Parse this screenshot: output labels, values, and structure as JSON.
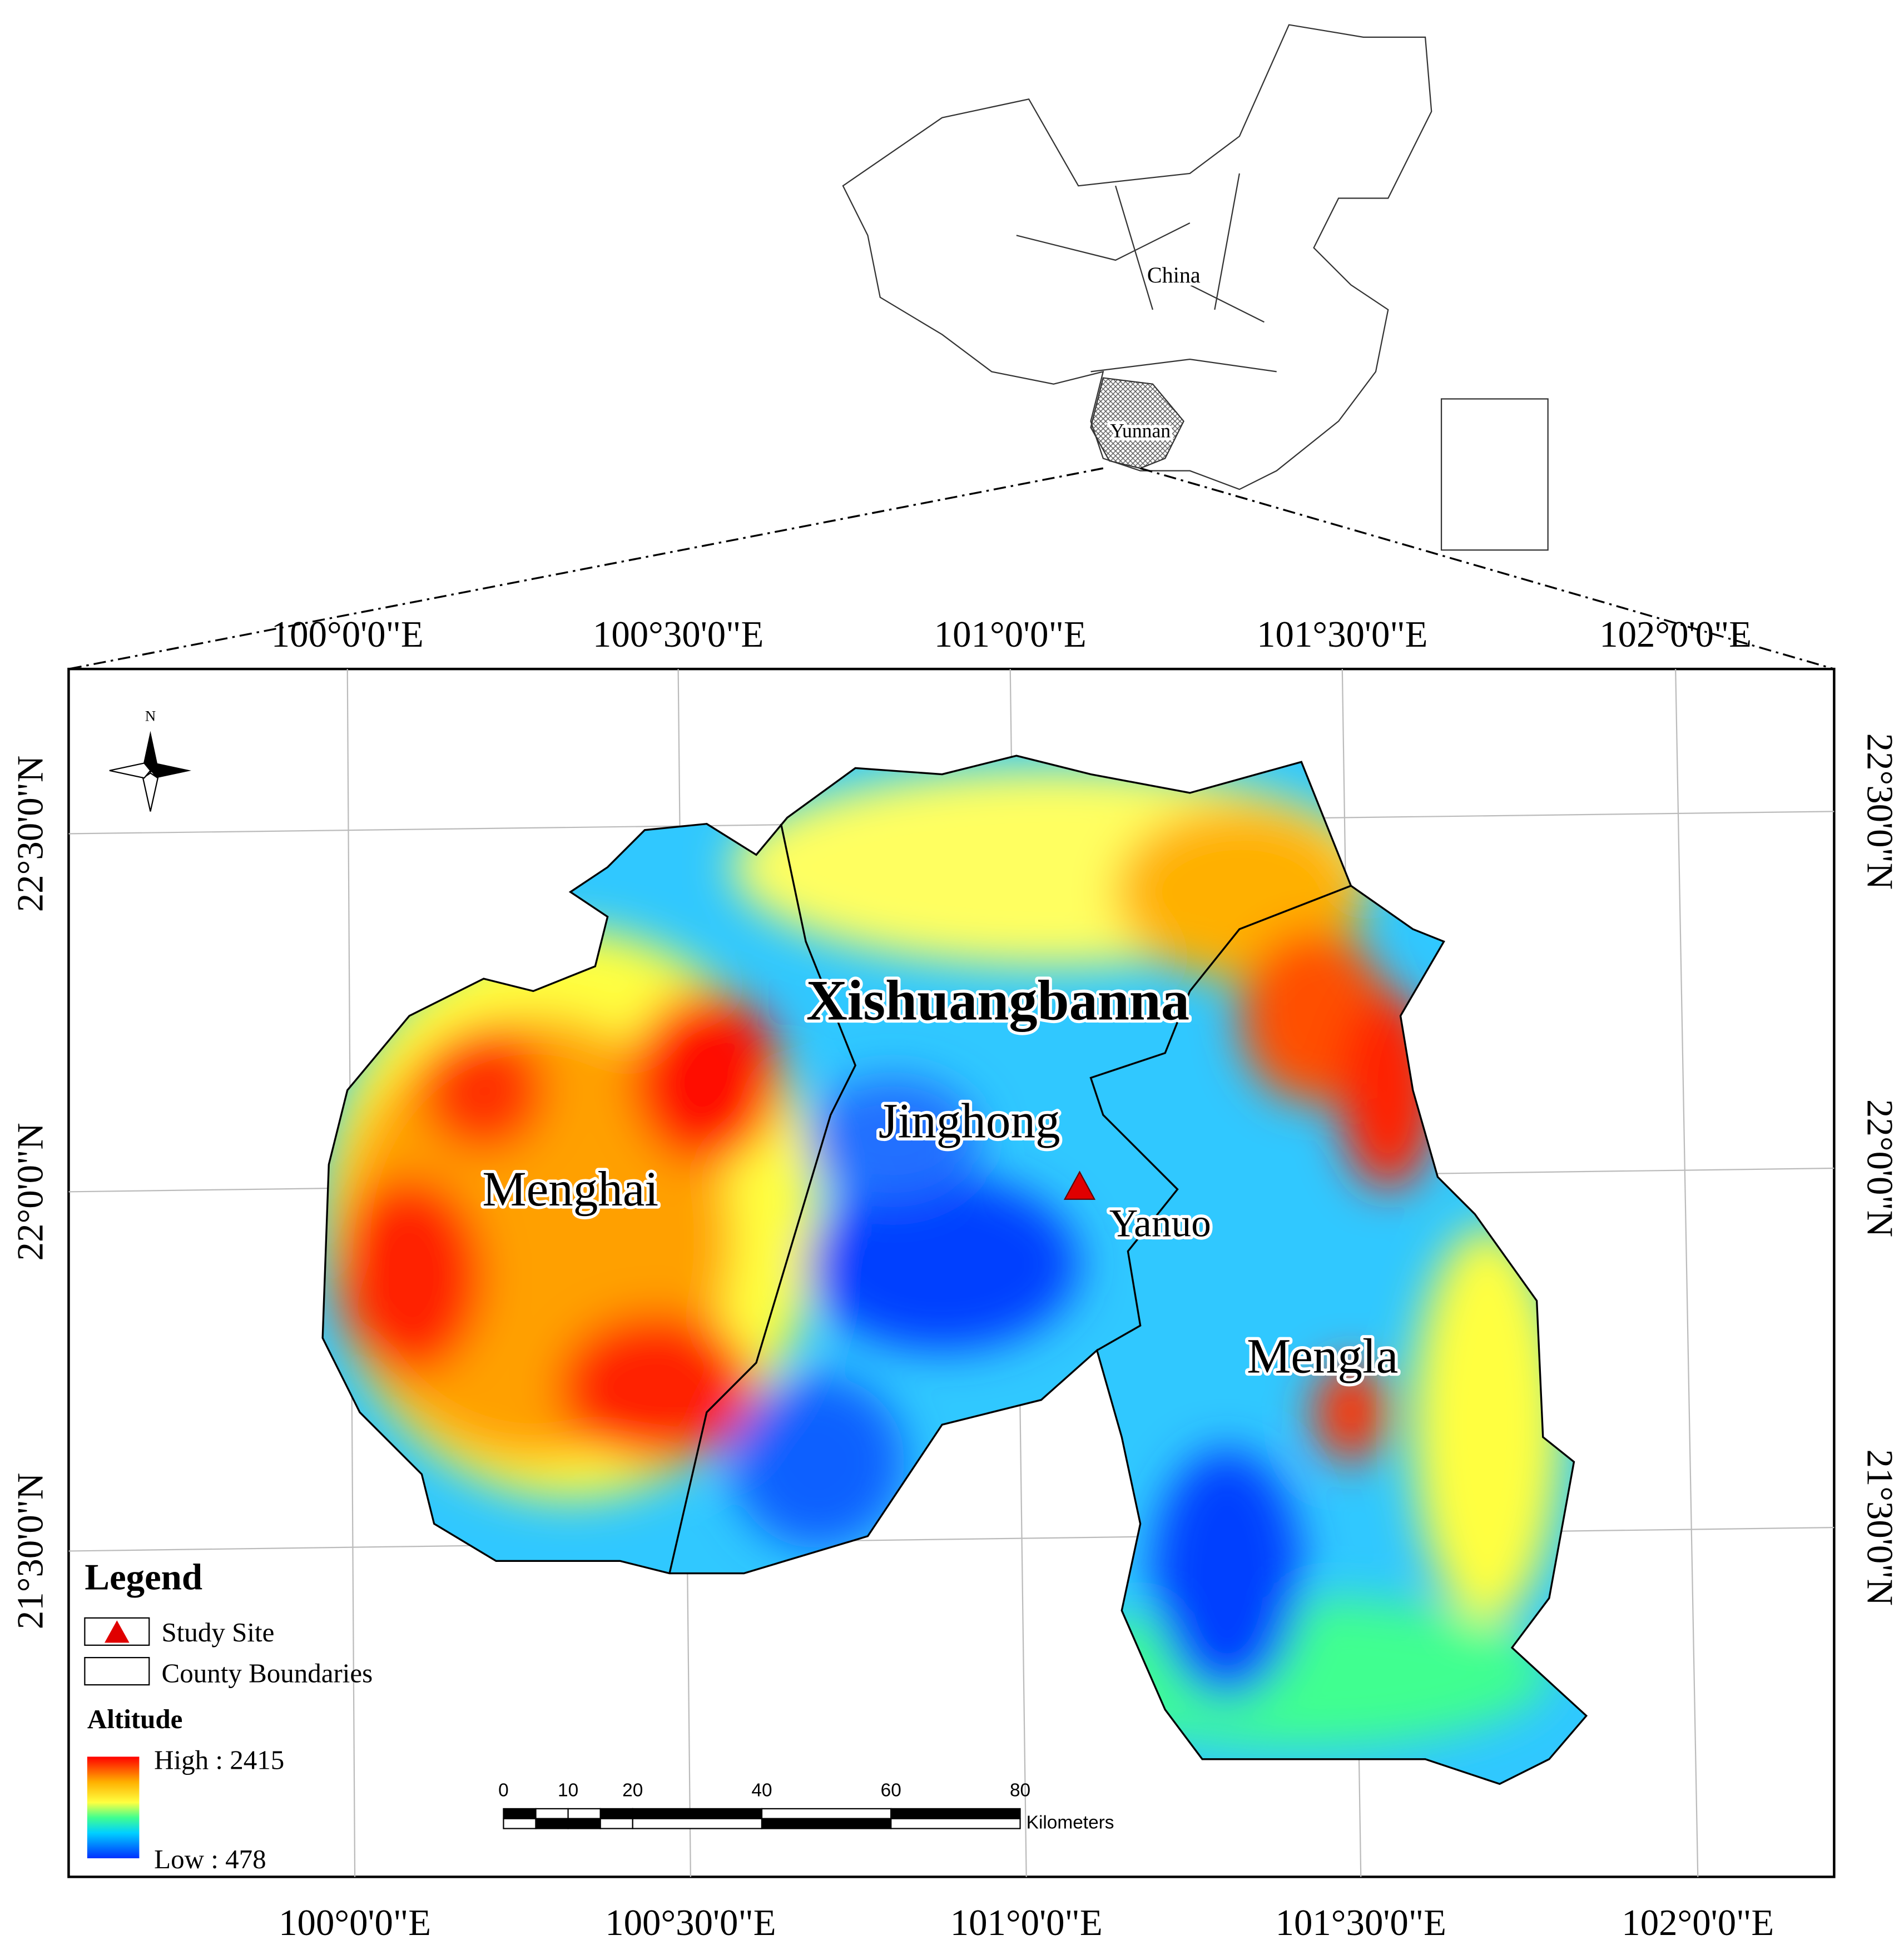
{
  "inset": {
    "country": "China",
    "province": "Yunnan"
  },
  "graticule": {
    "top": [
      "100°0'0\"E",
      "100°30'0\"E",
      "101°0'0\"E",
      "101°30'0\"E",
      "102°0'0\"E"
    ],
    "bottom": [
      "100°0'0\"E",
      "100°30'0\"E",
      "101°0'0\"E",
      "101°30'0\"E",
      "102°0'0\"E"
    ],
    "left": [
      "22°30'0\"N",
      "22°0'0\"N",
      "21°30'0\"N"
    ],
    "right": [
      "22°30'0\"N",
      "22°0'0\"N",
      "21°30'0\"N"
    ]
  },
  "north": "N",
  "places": {
    "prefecture": "Xishuangbanna",
    "counties": [
      "Menghai",
      "Jinghong",
      "Mengla"
    ],
    "site": "Yanuo"
  },
  "legend": {
    "title": "Legend",
    "items": [
      "Study Site",
      "County Boundaries"
    ],
    "altitude_title": "Altitude",
    "high": "High : 2415",
    "low": "Low : 478"
  },
  "scale_bar": {
    "ticks": [
      0,
      10,
      20,
      40,
      60,
      80
    ],
    "unit": "Kilometers"
  }
}
